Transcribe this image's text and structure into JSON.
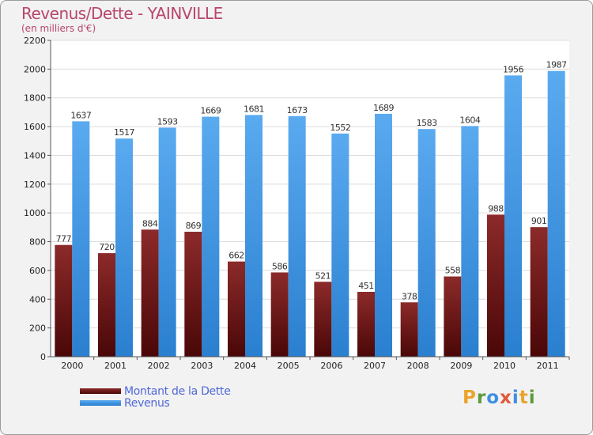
{
  "title": "Revenus/Dette - YAINVILLE",
  "subtitle": "(en milliers d'€)",
  "chart_data": {
    "type": "bar",
    "categories": [
      "2000",
      "2001",
      "2002",
      "2003",
      "2004",
      "2005",
      "2006",
      "2007",
      "2008",
      "2009",
      "2010",
      "2011"
    ],
    "series": [
      {
        "name": "Montant de la Dette",
        "values": [
          777,
          720,
          884,
          869,
          662,
          586,
          521,
          451,
          378,
          558,
          988,
          901
        ],
        "color": "#6e1414"
      },
      {
        "name": "Revenus",
        "values": [
          1637,
          1517,
          1593,
          1669,
          1681,
          1673,
          1552,
          1689,
          1583,
          1604,
          1956,
          1987
        ],
        "color": "#3f9ae4"
      }
    ],
    "ylim": [
      0,
      2200
    ],
    "yticks": [
      0,
      200,
      400,
      600,
      800,
      1000,
      1200,
      1400,
      1600,
      1800,
      2000,
      2200
    ],
    "grid": true,
    "legend_position": "bottom-left"
  },
  "legend": [
    {
      "label": "Montant de la Dette",
      "color": "#6e1414"
    },
    {
      "label": "Revenus",
      "color": "#3f9ae4"
    }
  ],
  "brand": {
    "letters": [
      "P",
      "r",
      "o",
      "x",
      "i",
      "t",
      "i"
    ],
    "colors": [
      "#e8a42c",
      "#5c9a3a",
      "#3f8ee0",
      "#e05a3a",
      "#3f8ee0",
      "#e8a42c",
      "#5c9a3a"
    ]
  }
}
